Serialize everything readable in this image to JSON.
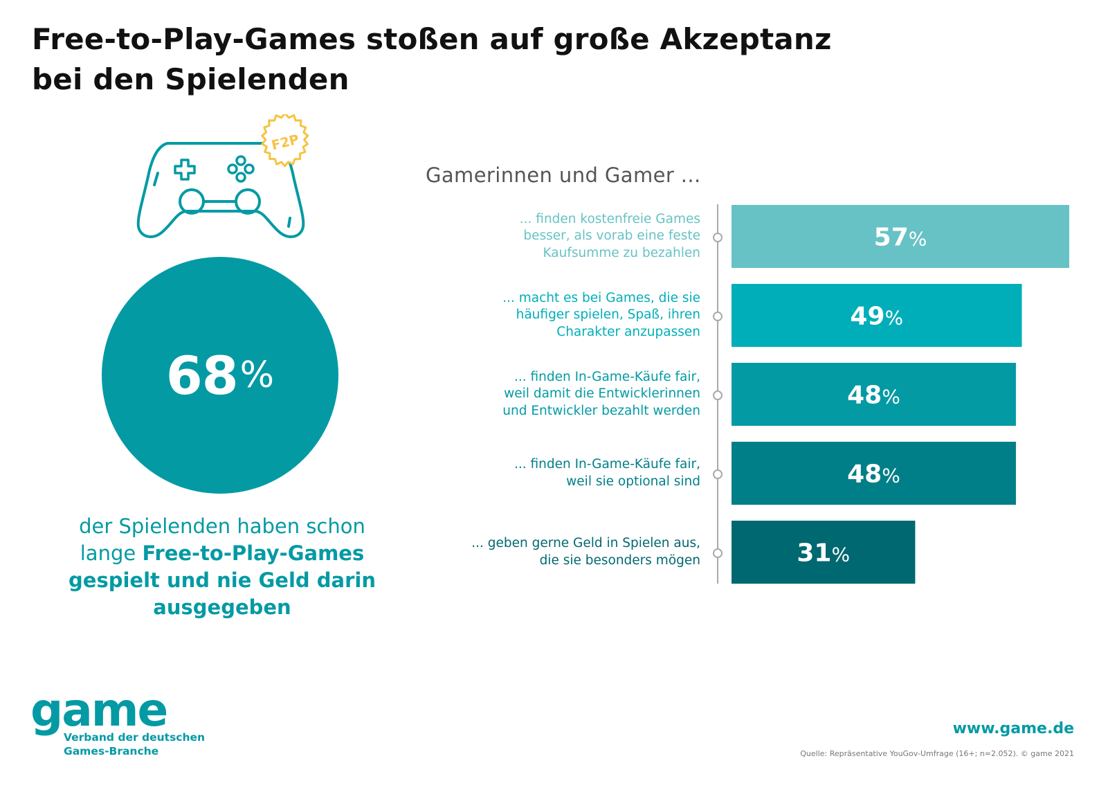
{
  "title": {
    "line1": "Free-to-Play-Games stoßen auf große Akzeptanz",
    "line2": "bei den Spielenden"
  },
  "icon": {
    "name": "gamepad-icon",
    "badge_text": "F2P",
    "color": "#039aa4",
    "badge_color": "#f6c342"
  },
  "highlight": {
    "value": "68",
    "unit": "%",
    "caption_plain_1": "der Spielenden haben schon",
    "caption_plain_2": "lange ",
    "caption_bold_1": "Free-to-Play-Games",
    "caption_bold_2": "gespielt und nie Geld darin",
    "caption_bold_3": "ausgegeben",
    "color": "#039aa4"
  },
  "chart_data": {
    "type": "bar",
    "orientation": "horizontal",
    "title": "Gamerinnen und Gamer ...",
    "unit": "%",
    "xlim": [
      0,
      57
    ],
    "categories": [
      [
        "... finden kostenfreie Games",
        "besser, als vorab eine feste",
        "Kaufsumme zu bezahlen"
      ],
      [
        "... macht es bei Games, die sie",
        "häufiger spielen, Spaß, ihren",
        "Charakter anzupassen"
      ],
      [
        "... finden In-Game-Käufe fair,",
        "weil damit die Entwicklerinnen",
        "und Entwickler bezahlt werden"
      ],
      [
        "... finden In-Game-Käufe fair,",
        "weil sie optional sind"
      ],
      [
        "... geben gerne Geld in Spielen aus,",
        "die sie besonders mögen"
      ]
    ],
    "values": [
      57,
      49,
      48,
      48,
      31
    ],
    "colors": [
      "#67c2c5",
      "#00aeb9",
      "#039aa4",
      "#007f88",
      "#006870"
    ]
  },
  "footer": {
    "logo_word": "game",
    "logo_sub_1": "Verband der deutschen",
    "logo_sub_2": "Games-Branche",
    "website": "www.game.de",
    "source": "Quelle: Repräsentative YouGov-Umfrage (16+; n=2.052). © game 2021"
  }
}
